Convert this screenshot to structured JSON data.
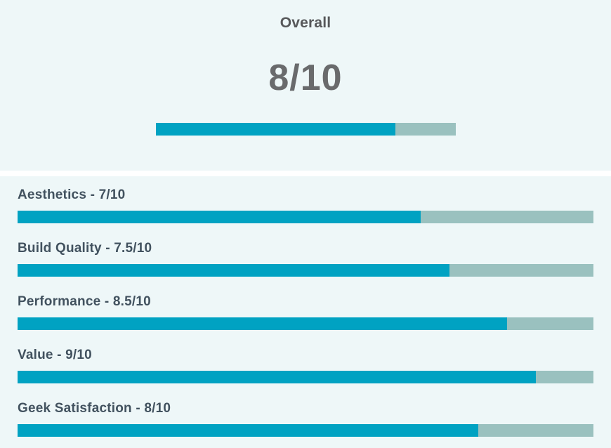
{
  "colors": {
    "card_background": "#eef7f8",
    "divider": "#ffffff",
    "bar_fill": "#00a2c2",
    "bar_track": "#9ac1bf",
    "overall_title_text": "#57585a",
    "overall_score_text": "#696a6c",
    "category_label_text": "#42525f"
  },
  "overall": {
    "title": "Overall",
    "score_text": "8/10",
    "score": 8,
    "max": 10,
    "percent": 80
  },
  "categories": [
    {
      "name": "Aesthetics",
      "label": "Aesthetics - 7/10",
      "score": 7,
      "max": 10,
      "percent": 70
    },
    {
      "name": "Build Quality",
      "label": "Build Quality - 7.5/10",
      "score": 7.5,
      "max": 10,
      "percent": 75
    },
    {
      "name": "Performance",
      "label": "Performance - 8.5/10",
      "score": 8.5,
      "max": 10,
      "percent": 85
    },
    {
      "name": "Value",
      "label": "Value - 9/10",
      "score": 9,
      "max": 10,
      "percent": 90
    },
    {
      "name": "Geek Satisfaction",
      "label": "Geek Satisfaction - 8/10",
      "score": 8,
      "max": 10,
      "percent": 80
    }
  ],
  "chart_data": {
    "type": "bar",
    "orientation": "horizontal",
    "title": "Overall",
    "overall_score": 8,
    "overall_score_label": "8/10",
    "categories": [
      "Aesthetics",
      "Build Quality",
      "Performance",
      "Value",
      "Geek Satisfaction"
    ],
    "values": [
      7,
      7.5,
      8.5,
      9,
      8
    ],
    "value_labels": [
      "7/10",
      "7.5/10",
      "8.5/10",
      "9/10",
      "8/10"
    ],
    "xlim": [
      0,
      10
    ],
    "grid": false,
    "legend": false,
    "bar_color": "#00a2c2",
    "track_color": "#9ac1bf"
  }
}
